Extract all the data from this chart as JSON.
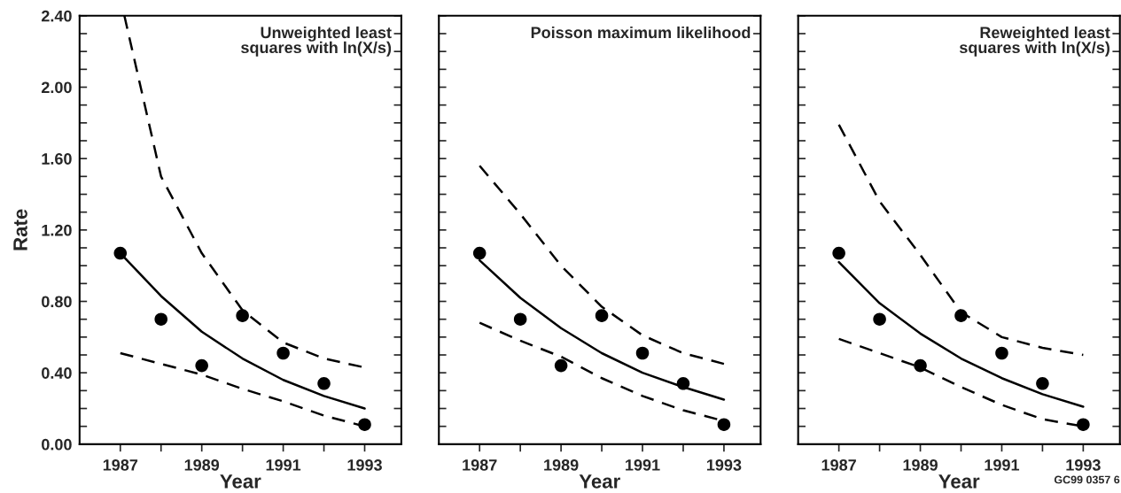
{
  "chart_data": [
    {
      "type": "line",
      "ylabel": "Rate",
      "xlabel": "Year",
      "xlim": [
        1986,
        1993.9
      ],
      "ylim": [
        0,
        2.4
      ],
      "xticks": [
        1987,
        {
          "value": 1988,
          "label": null
        },
        1989,
        {
          "value": 1990,
          "label": null
        },
        1991,
        {
          "value": 1992,
          "label": null
        },
        1993
      ],
      "yticks": [
        {
          "value": 0,
          "label": "0.00"
        },
        {
          "value": 0.1,
          "label": null
        },
        {
          "value": 0.2,
          "label": null
        },
        {
          "value": 0.3,
          "label": null
        },
        {
          "value": 0.4,
          "label": "0.40"
        },
        {
          "value": 0.5,
          "label": null
        },
        {
          "value": 0.6,
          "label": null
        },
        {
          "value": 0.7,
          "label": null
        },
        {
          "value": 0.8,
          "label": "0.80"
        },
        {
          "value": 0.9,
          "label": null
        },
        {
          "value": 1.0,
          "label": null
        },
        {
          "value": 1.1,
          "label": null
        },
        {
          "value": 1.2,
          "label": "1.20"
        },
        {
          "value": 1.3,
          "label": null
        },
        {
          "value": 1.4,
          "label": null
        },
        {
          "value": 1.5,
          "label": null
        },
        {
          "value": 1.6,
          "label": "1.60"
        },
        {
          "value": 1.7,
          "label": null
        },
        {
          "value": 1.8,
          "label": null
        },
        {
          "value": 1.9,
          "label": null
        },
        {
          "value": 2.0,
          "label": "2.00"
        },
        {
          "value": 2.1,
          "label": null
        },
        {
          "value": 2.2,
          "label": null
        },
        {
          "value": 2.3,
          "label": null
        },
        {
          "value": 2.4,
          "label": "2.40"
        }
      ],
      "x": [
        1987,
        1988,
        1989,
        1990,
        1991,
        1992,
        1993
      ],
      "grid": false,
      "legend": false,
      "annotations": [
        "Unweighted least\nsquares with ln(X/s)"
      ],
      "series": [
        {
          "type": "scatter",
          "marker": "circle",
          "color": "#000000",
          "values": [
            1.07,
            0.7,
            0.44,
            0.72,
            0.51,
            0.34,
            0.11
          ]
        },
        {
          "type": "line",
          "line_style": "solid",
          "color": "#000000",
          "values": [
            1.07,
            0.83,
            0.63,
            0.48,
            0.36,
            0.27,
            0.2
          ]
        },
        {
          "type": "line",
          "line_style": "dashed",
          "color": "#000000",
          "x": [
            1987.1,
            1988,
            1989,
            1990,
            1991,
            1992,
            1993
          ],
          "values": [
            2.4,
            1.5,
            1.07,
            0.75,
            0.57,
            0.48,
            0.43
          ]
        },
        {
          "type": "line",
          "line_style": "dashed",
          "color": "#000000",
          "values": [
            0.51,
            0.45,
            0.39,
            0.31,
            0.24,
            0.16,
            0.1
          ]
        }
      ]
    },
    {
      "type": "line",
      "xlabel": "Year",
      "xlim": [
        1986,
        1993.9
      ],
      "ylim": [
        0,
        2.4
      ],
      "tick_labels": "x",
      "xticks": [
        1987,
        {
          "value": 1988,
          "label": null
        },
        1989,
        {
          "value": 1990,
          "label": null
        },
        1991,
        {
          "value": 1992,
          "label": null
        },
        1993
      ],
      "yticks": [
        0,
        0.1,
        0.2,
        0.3,
        0.4,
        0.5,
        0.6,
        0.7,
        0.8,
        0.9,
        1.0,
        1.1,
        1.2,
        1.3,
        1.4,
        1.5,
        1.6,
        1.7,
        1.8,
        1.9,
        2.0,
        2.1,
        2.2,
        2.3,
        2.4
      ],
      "x": [
        1987,
        1988,
        1989,
        1990,
        1991,
        1992,
        1993
      ],
      "grid": false,
      "legend": false,
      "annotations": [
        "Poisson maximum likelihood"
      ],
      "series": [
        {
          "type": "scatter",
          "marker": "circle",
          "color": "#000000",
          "values": [
            1.07,
            0.7,
            0.44,
            0.72,
            0.51,
            0.34,
            0.11
          ]
        },
        {
          "type": "line",
          "line_style": "solid",
          "color": "#000000",
          "values": [
            1.03,
            0.82,
            0.65,
            0.51,
            0.4,
            0.32,
            0.25
          ]
        },
        {
          "type": "line",
          "line_style": "dashed",
          "color": "#000000",
          "values": [
            1.56,
            1.29,
            1.0,
            0.77,
            0.61,
            0.51,
            0.45
          ]
        },
        {
          "type": "line",
          "line_style": "dashed",
          "color": "#000000",
          "values": [
            0.68,
            0.58,
            0.49,
            0.37,
            0.27,
            0.19,
            0.13
          ]
        }
      ]
    },
    {
      "type": "line",
      "xlabel": "Year",
      "xlim": [
        1986,
        1993.9
      ],
      "ylim": [
        0,
        2.4
      ],
      "tick_labels": "x",
      "xticks": [
        1987,
        {
          "value": 1988,
          "label": null
        },
        1989,
        {
          "value": 1990,
          "label": null
        },
        1991,
        {
          "value": 1992,
          "label": null
        },
        1993
      ],
      "yticks": [
        0,
        0.1,
        0.2,
        0.3,
        0.4,
        0.5,
        0.6,
        0.7,
        0.8,
        0.9,
        1.0,
        1.1,
        1.2,
        1.3,
        1.4,
        1.5,
        1.6,
        1.7,
        1.8,
        1.9,
        2.0,
        2.1,
        2.2,
        2.3,
        2.4
      ],
      "x": [
        1987,
        1988,
        1989,
        1990,
        1991,
        1992,
        1993
      ],
      "grid": false,
      "legend": false,
      "annotations": [
        "Reweighted least\nsquares with ln(X/s)",
        "GC99 0357 6"
      ],
      "series": [
        {
          "type": "scatter",
          "marker": "circle",
          "color": "#000000",
          "values": [
            1.07,
            0.7,
            0.44,
            0.72,
            0.51,
            0.34,
            0.11
          ]
        },
        {
          "type": "line",
          "line_style": "solid",
          "color": "#000000",
          "values": [
            1.02,
            0.79,
            0.62,
            0.48,
            0.37,
            0.28,
            0.21
          ]
        },
        {
          "type": "line",
          "line_style": "dashed",
          "color": "#000000",
          "values": [
            1.79,
            1.36,
            1.06,
            0.74,
            0.6,
            0.54,
            0.5
          ]
        },
        {
          "type": "line",
          "line_style": "dashed",
          "color": "#000000",
          "values": [
            0.59,
            0.51,
            0.43,
            0.32,
            0.22,
            0.14,
            0.1
          ]
        }
      ]
    }
  ]
}
